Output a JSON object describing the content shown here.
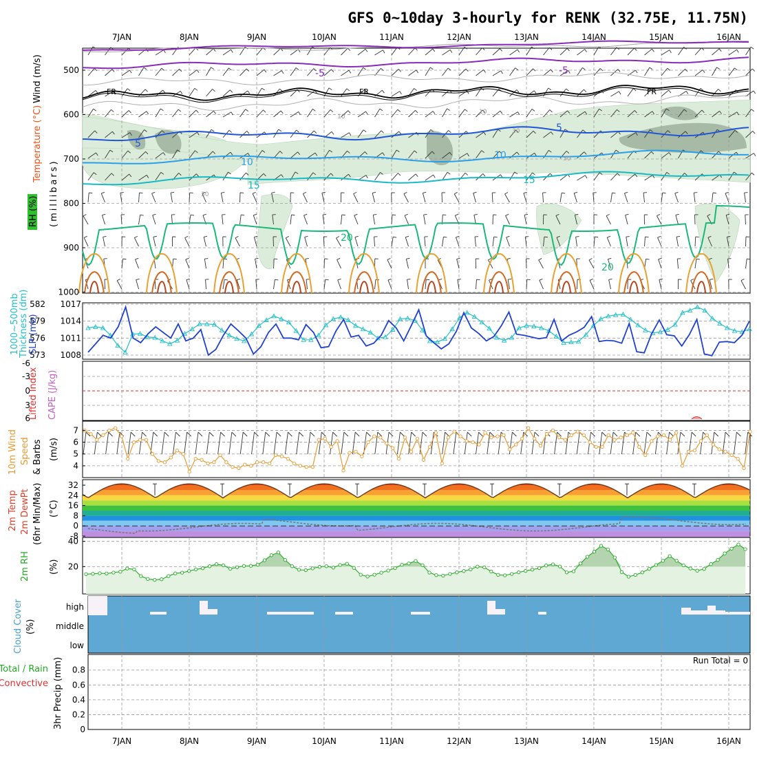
{
  "title": "GFS 0~10day 3-hourly for RENK (32.75E, 11.75N)",
  "date_labels": [
    "7JAN",
    "8JAN",
    "9JAN",
    "10JAN",
    "11JAN",
    "12JAN",
    "13JAN",
    "14JAN",
    "15JAN",
    "16JAN"
  ],
  "colors": {
    "pressure_wind": "#000000",
    "temperature": "#e8541a",
    "rh_label_bg": "#2fbf2f",
    "thickness": "#20c0c8",
    "slp": "#2040d0",
    "lifted_index": "#e03030",
    "cape": "#c060c0",
    "wind10m": "#e89a30",
    "temp2m": "#e0402a",
    "rh2m": "#22aa22",
    "cloud": "#5fa8d3",
    "precip_total": "#22aa22",
    "precip_convective": "#e03030"
  },
  "panels": {
    "upper": {
      "ylabel_wind": "Wind (m/s)",
      "ylabel_temp": "Temperature (°C)",
      "ylabel_rh": "RH (%)",
      "ylabel_mb": "(millibars)",
      "ticks": [
        "500",
        "600",
        "700",
        "800",
        "900",
        "1000"
      ],
      "contour_labels": {
        "fr": "FR",
        "m5": "-5",
        "p5": "5",
        "p10": "10",
        "p15": "15",
        "p20": "20",
        "rh10": "10",
        "rh30": "30"
      }
    },
    "slp": {
      "ylabel_thick": "1000~500mb",
      "ylabel_thick2": "Thickness (dm)",
      "ylabel_slp": "SLP (mb)",
      "ticks_left": [
        "582",
        "579",
        "576",
        "573"
      ],
      "ticks_right": [
        "1017",
        "1014",
        "1011",
        "1008"
      ]
    },
    "cape": {
      "ylabel_li": "Lifted Index",
      "ylabel_cape": "CAPE (J/kg)",
      "ticks": [
        "-6",
        "-3",
        "0",
        "3",
        "6"
      ]
    },
    "wind": {
      "ylabel1": "10m Wind",
      "ylabel2": "Speed",
      "ylabel3": "& Barbs",
      "ylabel_unit": "(m/s)",
      "ticks": [
        "7",
        "6",
        "5",
        "4"
      ]
    },
    "temp": {
      "ylabel1": "2m Temp",
      "ylabel2": "2m DewPt",
      "ylabel3": "(6hr Min/Max)",
      "ylabel_unit": "(°C)",
      "ticks": [
        "32",
        "24",
        "16",
        "8",
        "0",
        "-8"
      ]
    },
    "rh": {
      "ylabel": "2m RH",
      "ylabel_unit": "(%)",
      "ticks": [
        "40",
        "20"
      ]
    },
    "cloud": {
      "ylabel": "Cloud Cover",
      "ylabel_unit": "(%)",
      "levels": [
        "high",
        "middle",
        "low"
      ]
    },
    "precip": {
      "ylabel_a": "Total / Rain",
      "ylabel_b": "Convective",
      "ylabel_c": "3hr Precip (mm)",
      "ticks": [
        "0.8",
        "0.6",
        "0.4",
        "0.2",
        "0"
      ],
      "run_total": "Run Total = 0"
    }
  },
  "chart_data": [
    {
      "type": "line",
      "title": "1000~500mb Thickness (dm) and SLP (mb)",
      "series": [
        {
          "name": "SLP (mb)",
          "x_index_step": "3h",
          "values": [
            1008.5,
            1010,
            1011.5,
            1011,
            1013,
            1016.5,
            1011,
            1010.2,
            1011.8,
            1013,
            1012,
            1011,
            1013.5,
            1010.5,
            1011,
            1012.5,
            1008,
            1009,
            1011.5,
            1013.5,
            1012.3,
            1011,
            1008.2,
            1009.5,
            1012,
            1013.5,
            1011,
            1011,
            1010.7,
            1013.4,
            1012,
            1009.3,
            1009.5,
            1012.3,
            1014.3,
            1011.2,
            1011.5,
            1009.6,
            1010.1,
            1011.5,
            1014.1,
            1012.8,
            1010.5,
            1013.2,
            1016,
            1011.4,
            1010.2,
            1009.1,
            1010,
            1012.2,
            1015.5,
            1012.8,
            1011.8,
            1010.5,
            1011.3,
            1013.2,
            1015.6,
            1011.7,
            1011.5,
            1011.2,
            1010.9,
            1011.1,
            1014.3,
            1010.5,
            1011.5,
            1012.1,
            1012.9,
            1014.8,
            1010.4,
            1010.6,
            1010.5,
            1010.1,
            1013.6,
            1008.6,
            1008.4,
            1011.8,
            1014.2,
            1011.6,
            1011.4,
            1009.6,
            1011.6,
            1014.3,
            1008.2,
            1007.9,
            1010.3,
            1010.4,
            1010.2,
            1011.5,
            1014
          ]
        },
        {
          "name": "1000~500mb Thickness (dm)",
          "x_index_step": "3h",
          "values": [
            577.8,
            578,
            577.8,
            576.5,
            574.7,
            573.5,
            576.7,
            576.8,
            576.2,
            576.1,
            575.5,
            575,
            575.6,
            576.8,
            577.6,
            578.5,
            578.5,
            578.4,
            577.4,
            576.5,
            575.9,
            575.5,
            576.7,
            578.2,
            579.2,
            579.9,
            579.4,
            578.8,
            577.3,
            575.7,
            575.7,
            576.5,
            578.3,
            579.4,
            579.7,
            579.2,
            578.2,
            577.6,
            577,
            576,
            576.2,
            577.5,
            579.4,
            579.5,
            579.1,
            577.4,
            575.5,
            575.3,
            575.9,
            577.6,
            579.6,
            580.5,
            579.8,
            578.8,
            577.7,
            576.1,
            575.6,
            576.1,
            577.8,
            578.2,
            578.1,
            577.8,
            577.3,
            576.3,
            575.2,
            575.3,
            575.4,
            576.6,
            578.2,
            579.4,
            579.9,
            580.1,
            580.2,
            579.3,
            578.3,
            577.4,
            576.9,
            577.1,
            577.5,
            578.4,
            580.5,
            580.9,
            581.5,
            580.9,
            579.5,
            578.6,
            577.8,
            577.3,
            577.1,
            577.6
          ]
        }
      ],
      "x_start_label": "7JAN",
      "ylim_left": [
        573,
        582
      ],
      "ylim_right": [
        1008,
        1017
      ]
    },
    {
      "type": "line",
      "title": "10m Wind Speed (m/s)",
      "series": [
        {
          "name": "10m Wind Speed",
          "values": [
            7,
            6.7,
            6.2,
            6.6,
            7,
            7.2,
            6.5,
            4.6,
            6,
            6.2,
            6.2,
            5,
            4.4,
            4.3,
            4.7,
            5.3,
            5,
            3.5,
            4.6,
            4.5,
            4.2,
            4.3,
            4.9,
            4.3,
            3.9,
            3.8,
            4.1,
            4,
            4.3,
            4.3,
            4.2,
            4.9,
            4.8,
            4.6,
            4.2,
            4,
            3.9,
            3.9,
            6.2,
            6.3,
            5.6,
            6.1,
            3.6,
            5.1,
            5.2,
            4.8,
            6,
            6.5,
            6.4,
            5.9,
            5.5,
            4.6,
            6.4,
            5.2,
            6.3,
            4.5,
            5.6,
            6.8,
            4.2,
            6.4,
            6.9,
            6.5,
            6.1,
            6,
            5.8,
            6.8,
            6.4,
            6.5,
            6.6,
            5.4,
            5.8,
            6.3,
            7.2,
            6.3,
            5.7,
            6.7,
            7,
            6.4,
            6.2,
            6.6,
            6.9,
            6.6,
            6,
            5.6,
            5.6,
            6.6,
            6.2,
            6.4,
            6.6,
            6.8,
            5.6,
            4.9,
            6.1,
            6.5,
            6.6,
            6.2,
            6.8,
            4,
            5.2,
            5.3,
            6.1,
            6.6,
            5.8,
            5.4,
            5.2,
            4.9,
            4.6,
            3.8,
            6.9
          ]
        }
      ],
      "ylim": [
        3.3,
        7.4
      ]
    },
    {
      "type": "area",
      "title": "2m RH (%)",
      "series": [
        {
          "name": "2m RH",
          "values": [
            14,
            14.3,
            14.7,
            14.5,
            15.3,
            16,
            18.5,
            17.8,
            12.5,
            10.2,
            9.5,
            10,
            12.5,
            14.6,
            15.2,
            16.5,
            17.8,
            18.7,
            20.3,
            22,
            21,
            18.3,
            19.5,
            20.5,
            20.6,
            21.5,
            25.1,
            29,
            31.2,
            25.3,
            20.3,
            17.5,
            17.2,
            18.6,
            19.8,
            20.3,
            19.2,
            21.3,
            22.3,
            19,
            13.6,
            12.1,
            13.6,
            15.2,
            16.9,
            18.8,
            21.4,
            22.5,
            24.5,
            21.1,
            15.3,
            13.2,
            12.8,
            14.2,
            15.4,
            16.5,
            17.8,
            20,
            19.4,
            16.1,
            13.5,
            13.1,
            14.2,
            15.5,
            16.6,
            17.6,
            18.8,
            20.9,
            21.8,
            20.1,
            15.4,
            16.3,
            22.5,
            27.8,
            31.8,
            36.5,
            33.6,
            27.2,
            15.7,
            12,
            13.4,
            15.4,
            18.2,
            21.3,
            24.6,
            28.3,
            24.6,
            21,
            18.5,
            16.8,
            18.1,
            22,
            25.3,
            30.5,
            34.2,
            37.6,
            33.8
          ]
        }
      ],
      "ylim": [
        0,
        42
      ]
    },
    {
      "type": "bar",
      "title": "3hr Precip (mm)",
      "series": [
        {
          "name": "Total / Rain",
          "values": [
            0
          ]
        },
        {
          "name": "Convective",
          "values": [
            0
          ]
        }
      ],
      "ylim": [
        0,
        1
      ]
    }
  ]
}
